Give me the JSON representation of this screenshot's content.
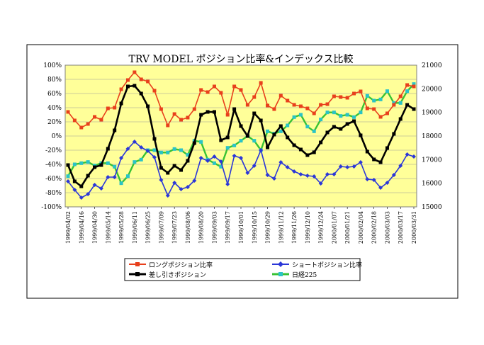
{
  "chart_data": {
    "type": "line",
    "title": "TRV MODEL ポジション比率&インデックス比較",
    "x": [
      "1999/04/02",
      "1999/04/09",
      "1999/04/16",
      "1999/04/23",
      "1999/04/30",
      "1999/05/07",
      "1999/05/14",
      "1999/05/21",
      "1999/05/28",
      "1999/06/04",
      "1999/06/11",
      "1999/06/18",
      "1999/06/25",
      "1999/07/02",
      "1999/07/09",
      "1999/07/16",
      "1999/07/23",
      "1999/07/30",
      "1999/08/06",
      "1999/08/13",
      "1999/08/20",
      "1999/08/27",
      "1999/09/03",
      "1999/09/10",
      "1999/09/17",
      "1999/09/24",
      "1999/10/01",
      "1999/10/08",
      "1999/10/15",
      "1999/10/22",
      "1999/10/29",
      "1999/11/05",
      "1999/11/12",
      "1999/11/19",
      "1999/11/26",
      "1999/12/03",
      "1999/12/10",
      "1999/12/17",
      "1999/12/24",
      "1999/12/31",
      "2000/01/07",
      "2000/01/14",
      "2000/01/21",
      "2000/01/28",
      "2000/02/04",
      "2000/02/11",
      "2000/02/18",
      "2000/02/25",
      "2000/03/03",
      "2000/03/10",
      "2000/03/17",
      "2000/03/24",
      "2000/03/31"
    ],
    "x_tick_labels": [
      "1999/04/02",
      "1999/04/16",
      "1999/04/30",
      "1999/05/14",
      "1999/05/28",
      "1999/06/11",
      "1999/06/25",
      "1999/07/09",
      "1999/07/23",
      "1999/08/06",
      "1999/08/20",
      "1999/09/03",
      "1999/09/17",
      "1999/10/01",
      "1999/10/15",
      "1999/10/29",
      "1999/11/12",
      "1999/11/26",
      "1999/12/10",
      "1999/12/24",
      "2000/01/07",
      "2000/01/21",
      "2000/02/04",
      "2000/02/18",
      "2000/03/03",
      "2000/03/17",
      "2000/03/31"
    ],
    "y_left": {
      "ylim": [
        -100,
        100
      ],
      "ticks": [
        100,
        80,
        60,
        40,
        20,
        0,
        -20,
        -40,
        -60,
        -80,
        -100
      ],
      "tick_suffix": "%"
    },
    "y_right": {
      "ylim": [
        15000,
        21000
      ],
      "ticks": [
        21000,
        20000,
        19000,
        18000,
        17000,
        16000,
        15000
      ]
    },
    "grid": "horizontal",
    "legend_position": "bottom",
    "series": [
      {
        "name": "ロングポジション比率",
        "axis": "left",
        "color": "#e8401c",
        "marker": "square",
        "values": [
          34,
          22,
          12,
          17,
          27,
          23,
          39,
          40,
          66,
          79,
          90,
          80,
          77,
          64,
          38,
          15,
          31,
          23,
          26,
          38,
          65,
          62,
          70,
          61,
          30,
          70,
          65,
          44,
          55,
          75,
          43,
          38,
          57,
          50,
          44,
          42,
          39,
          32,
          44,
          45,
          56,
          55,
          54,
          60,
          63,
          39,
          38,
          27,
          32,
          44,
          56,
          72,
          70
        ]
      },
      {
        "name": "ショートポジション比率",
        "axis": "left",
        "color": "#2b37d8",
        "marker": "diamond",
        "values": [
          -64,
          -76,
          -87,
          -82,
          -69,
          -74,
          -58,
          -58,
          -31,
          -18,
          -8,
          -16,
          -21,
          -30,
          -62,
          -84,
          -66,
          -75,
          -72,
          -63,
          -31,
          -35,
          -29,
          -36,
          -68,
          -28,
          -31,
          -52,
          -42,
          -20,
          -55,
          -60,
          -37,
          -44,
          -50,
          -54,
          -56,
          -57,
          -67,
          -54,
          -54,
          -43,
          -44,
          -43,
          -37,
          -61,
          -62,
          -73,
          -66,
          -55,
          -42,
          -26,
          -29
        ]
      },
      {
        "name": "差し引きポジション",
        "axis": "left",
        "color": "#000000",
        "marker": "square",
        "values": [
          -41,
          -64,
          -71,
          -56,
          -44,
          -41,
          -18,
          8,
          46,
          70,
          71,
          60,
          42,
          -4,
          -45,
          -52,
          -42,
          -48,
          -35,
          -10,
          30,
          34,
          34,
          -6,
          -2,
          38,
          14,
          0,
          32,
          22,
          -16,
          2,
          14,
          -2,
          -13,
          -19,
          -27,
          -23,
          -9,
          5,
          13,
          10,
          17,
          21,
          1,
          -22,
          -33,
          -37,
          -17,
          3,
          24,
          44,
          38
        ]
      },
      {
        "name": "日経225",
        "axis": "right",
        "color": "#2ac3c7",
        "line_color": "#38c234",
        "marker": "square",
        "values": [
          16300,
          16800,
          16850,
          16900,
          16750,
          16850,
          16850,
          16700,
          16000,
          16300,
          16900,
          17000,
          17400,
          17400,
          17300,
          17300,
          17450,
          17400,
          17200,
          17800,
          17750,
          17000,
          16850,
          16700,
          17500,
          17600,
          17800,
          18000,
          17800,
          17400,
          18200,
          18100,
          18200,
          18450,
          18800,
          18900,
          18400,
          18200,
          18700,
          19000,
          19000,
          18850,
          18900,
          18800,
          19000,
          19700,
          19500,
          19550,
          19900,
          19400,
          19400,
          19900,
          20200
        ]
      }
    ]
  }
}
